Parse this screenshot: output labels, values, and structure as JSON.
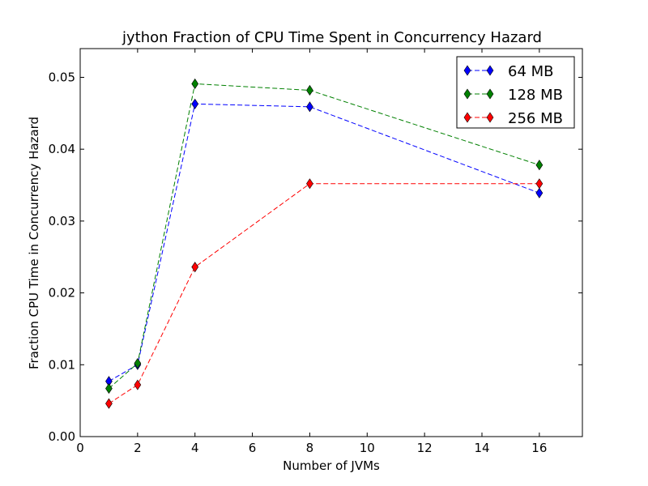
{
  "chart_data": {
    "type": "line",
    "title": "jython Fraction of CPU Time Spent in Concurrency Hazard",
    "xlabel": "Number of JVMs",
    "ylabel": "Fraction CPU Time in Concurrency Hazard",
    "xlim": [
      0,
      17.5
    ],
    "ylim": [
      0,
      0.054
    ],
    "xticks": [
      0,
      2,
      4,
      6,
      8,
      10,
      12,
      14,
      16
    ],
    "xtick_labels": [
      "0",
      "2",
      "4",
      "6",
      "8",
      "10",
      "12",
      "14",
      "16"
    ],
    "yticks": [
      0,
      0.01,
      0.02,
      0.03,
      0.04,
      0.05
    ],
    "ytick_labels": [
      "0.00",
      "0.01",
      "0.02",
      "0.03",
      "0.04",
      "0.05"
    ],
    "grid": false,
    "legend_position": "top-right",
    "x": [
      1,
      2,
      4,
      8,
      16
    ],
    "series": [
      {
        "name": "64 MB",
        "color": "#0000ff",
        "marker": "diamond",
        "linestyle": "dashed",
        "values": [
          0.0077,
          0.01,
          0.0463,
          0.0459,
          0.0339
        ]
      },
      {
        "name": "128 MB",
        "color": "#008000",
        "marker": "diamond",
        "linestyle": "dashed",
        "values": [
          0.0067,
          0.0102,
          0.0491,
          0.0482,
          0.0378
        ]
      },
      {
        "name": "256 MB",
        "color": "#ff0000",
        "marker": "diamond",
        "linestyle": "dashed",
        "values": [
          0.0046,
          0.0072,
          0.0236,
          0.0352,
          0.0352
        ]
      }
    ]
  }
}
